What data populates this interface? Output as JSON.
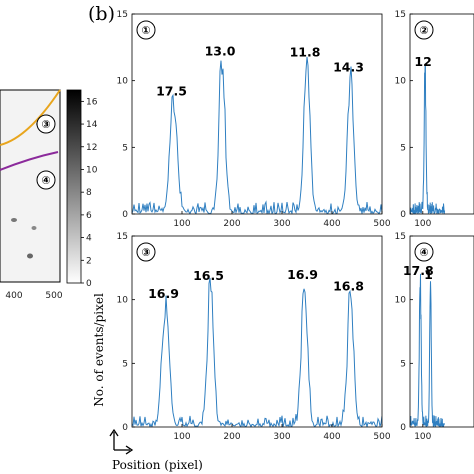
{
  "figure": {
    "panel_label": "(b)",
    "ylabel": "No. of events/pixel",
    "xlabel": "Position (pixel)"
  },
  "colors": {
    "trace": "#2f7fc1",
    "orange_track": "#e8a51d",
    "purple_track": "#8b2a9b",
    "axis": "#000000"
  },
  "left_panel": {
    "markers": [
      "③",
      "④"
    ],
    "x_ticks": [
      "400",
      "500"
    ],
    "colorbar_ticks": [
      "0",
      "2",
      "4",
      "6",
      "8",
      "10",
      "12",
      "14",
      "16"
    ],
    "colorbar_range": [
      0,
      17
    ]
  },
  "chart_data": [
    {
      "type": "line",
      "id": "plot1",
      "marker": "①",
      "xlim": [
        0,
        500
      ],
      "ylim": [
        0,
        15
      ],
      "x_ticks": [
        100,
        200,
        300,
        400,
        500
      ],
      "y_ticks": [
        0,
        5,
        10,
        15
      ],
      "peaks": [
        {
          "x": 83,
          "y": 8.3,
          "label": "17.5"
        },
        {
          "x": 180,
          "y": 11.3,
          "label": "13.0"
        },
        {
          "x": 350,
          "y": 11.2,
          "label": "11.8"
        },
        {
          "x": 437,
          "y": 10.1,
          "label": "14.3"
        }
      ]
    },
    {
      "type": "line",
      "id": "plot2",
      "marker": "②",
      "xlim": [
        0,
        500
      ],
      "ylim": [
        0,
        15
      ],
      "x_ticks": [
        100
      ],
      "y_ticks": [
        0,
        5,
        10,
        15
      ],
      "peaks": [
        {
          "x": 118,
          "y": 10.5,
          "label": "12"
        }
      ]
    },
    {
      "type": "line",
      "id": "plot3",
      "marker": "③",
      "xlim": [
        0,
        500
      ],
      "ylim": [
        0,
        15
      ],
      "x_ticks": [
        100,
        200,
        300,
        400,
        500
      ],
      "y_ticks": [
        0,
        5,
        10,
        15
      ],
      "peaks": [
        {
          "x": 67,
          "y": 9.5,
          "label": "16.9"
        },
        {
          "x": 157,
          "y": 10.9,
          "label": "16.5"
        },
        {
          "x": 345,
          "y": 11.0,
          "label": "16.9"
        },
        {
          "x": 437,
          "y": 10.1,
          "label": "16.8"
        }
      ]
    },
    {
      "type": "line",
      "id": "plot4",
      "marker": "④",
      "xlim": [
        0,
        500
      ],
      "ylim": [
        0,
        15
      ],
      "x_ticks": [
        100
      ],
      "y_ticks": [
        0,
        5,
        10,
        15
      ],
      "peaks": [
        {
          "x": 80,
          "y": 11.3,
          "label": "17.8"
        },
        {
          "x": 160,
          "y": 11.0,
          "label": "1"
        }
      ]
    }
  ]
}
